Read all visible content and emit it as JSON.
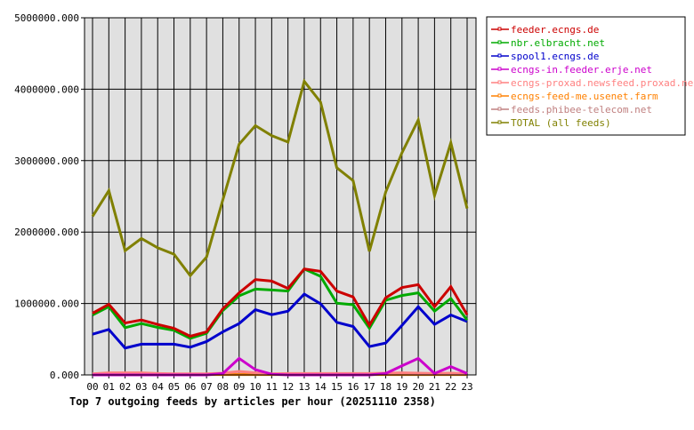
{
  "chart_data": {
    "type": "line",
    "title": "Top 7 outgoing feeds by articles per hour (20251110 2358)",
    "xlabel": "",
    "ylabel": "",
    "categories": [
      "00",
      "01",
      "02",
      "03",
      "04",
      "05",
      "06",
      "07",
      "08",
      "09",
      "10",
      "11",
      "12",
      "13",
      "14",
      "15",
      "16",
      "17",
      "18",
      "19",
      "20",
      "21",
      "22",
      "23"
    ],
    "ylim": [
      0,
      5000000
    ],
    "yticks": [
      0,
      1000000,
      2000000,
      3000000,
      4000000,
      5000000
    ],
    "ytick_labels": [
      "0.000",
      "1000000.000",
      "2000000.000",
      "3000000.000",
      "4000000.000",
      "5000000.000"
    ],
    "grid": true,
    "legend_position": "right",
    "series": [
      {
        "name": "feeder.ecngs.de",
        "color": "#cc0000",
        "values": [
          864000,
          988000,
          727000,
          769000,
          707000,
          653000,
          541000,
          603000,
          926000,
          1149000,
          1335000,
          1314000,
          1211000,
          1483000,
          1450000,
          1174000,
          1091000,
          694000,
          1079000,
          1223000,
          1264000,
          955000,
          1236000,
          843000
        ]
      },
      {
        "name": "nbr.elbracht.net",
        "color": "#00aa00",
        "values": [
          839000,
          955000,
          661000,
          719000,
          665000,
          624000,
          512000,
          583000,
          901000,
          1107000,
          1202000,
          1190000,
          1174000,
          1483000,
          1380000,
          1004000,
          983000,
          653000,
          1045000,
          1112000,
          1149000,
          893000,
          1070000,
          769000
        ]
      },
      {
        "name": "spool1.ecngs.de",
        "color": "#0000cc",
        "values": [
          570000,
          636000,
          376000,
          430000,
          430000,
          430000,
          388000,
          467000,
          603000,
          719000,
          913000,
          843000,
          893000,
          1132000,
          996000,
          736000,
          678000,
          397000,
          446000,
          694000,
          955000,
          707000,
          839000,
          748000
        ]
      },
      {
        "name": "ecngs-in.feeder.erje.net",
        "color": "#cc00cc",
        "values": [
          0,
          0,
          0,
          0,
          0,
          0,
          0,
          0,
          20000,
          231000,
          74000,
          10000,
          0,
          0,
          0,
          0,
          0,
          0,
          20000,
          128000,
          231000,
          20000,
          116000,
          20000
        ]
      },
      {
        "name": "ecngs-proxad.newsfeed.proxad.net",
        "color": "#ff8080",
        "values": [
          15000,
          30000,
          30000,
          30000,
          20000,
          15000,
          15000,
          15000,
          25000,
          50000,
          30000,
          15000,
          20000,
          20000,
          20000,
          20000,
          20000,
          20000,
          25000,
          30000,
          25000,
          20000,
          25000,
          15000
        ]
      },
      {
        "name": "ecngs-feed-me.usenet.farm",
        "color": "#ff8000",
        "values": [
          5000,
          5000,
          5000,
          5000,
          5000,
          5000,
          5000,
          5000,
          5000,
          5000,
          5000,
          5000,
          5000,
          5000,
          5000,
          5000,
          5000,
          5000,
          5000,
          5000,
          5000,
          5000,
          5000,
          5000
        ]
      },
      {
        "name": "feeds.phibee-telecom.net",
        "color": "#c08080",
        "values": [
          10000,
          10000,
          10000,
          10000,
          10000,
          10000,
          10000,
          10000,
          10000,
          10000,
          10000,
          10000,
          10000,
          10000,
          10000,
          10000,
          10000,
          10000,
          10000,
          10000,
          10000,
          10000,
          10000,
          10000
        ]
      },
      {
        "name": "TOTAL (all feeds)",
        "color": "#808000",
        "values": [
          2220000,
          2580000,
          1740000,
          1910000,
          1780000,
          1690000,
          1390000,
          1650000,
          2450000,
          3230000,
          3490000,
          3350000,
          3260000,
          4110000,
          3820000,
          2900000,
          2720000,
          1730000,
          2560000,
          3110000,
          3570000,
          2510000,
          3250000,
          2330000
        ]
      }
    ]
  }
}
